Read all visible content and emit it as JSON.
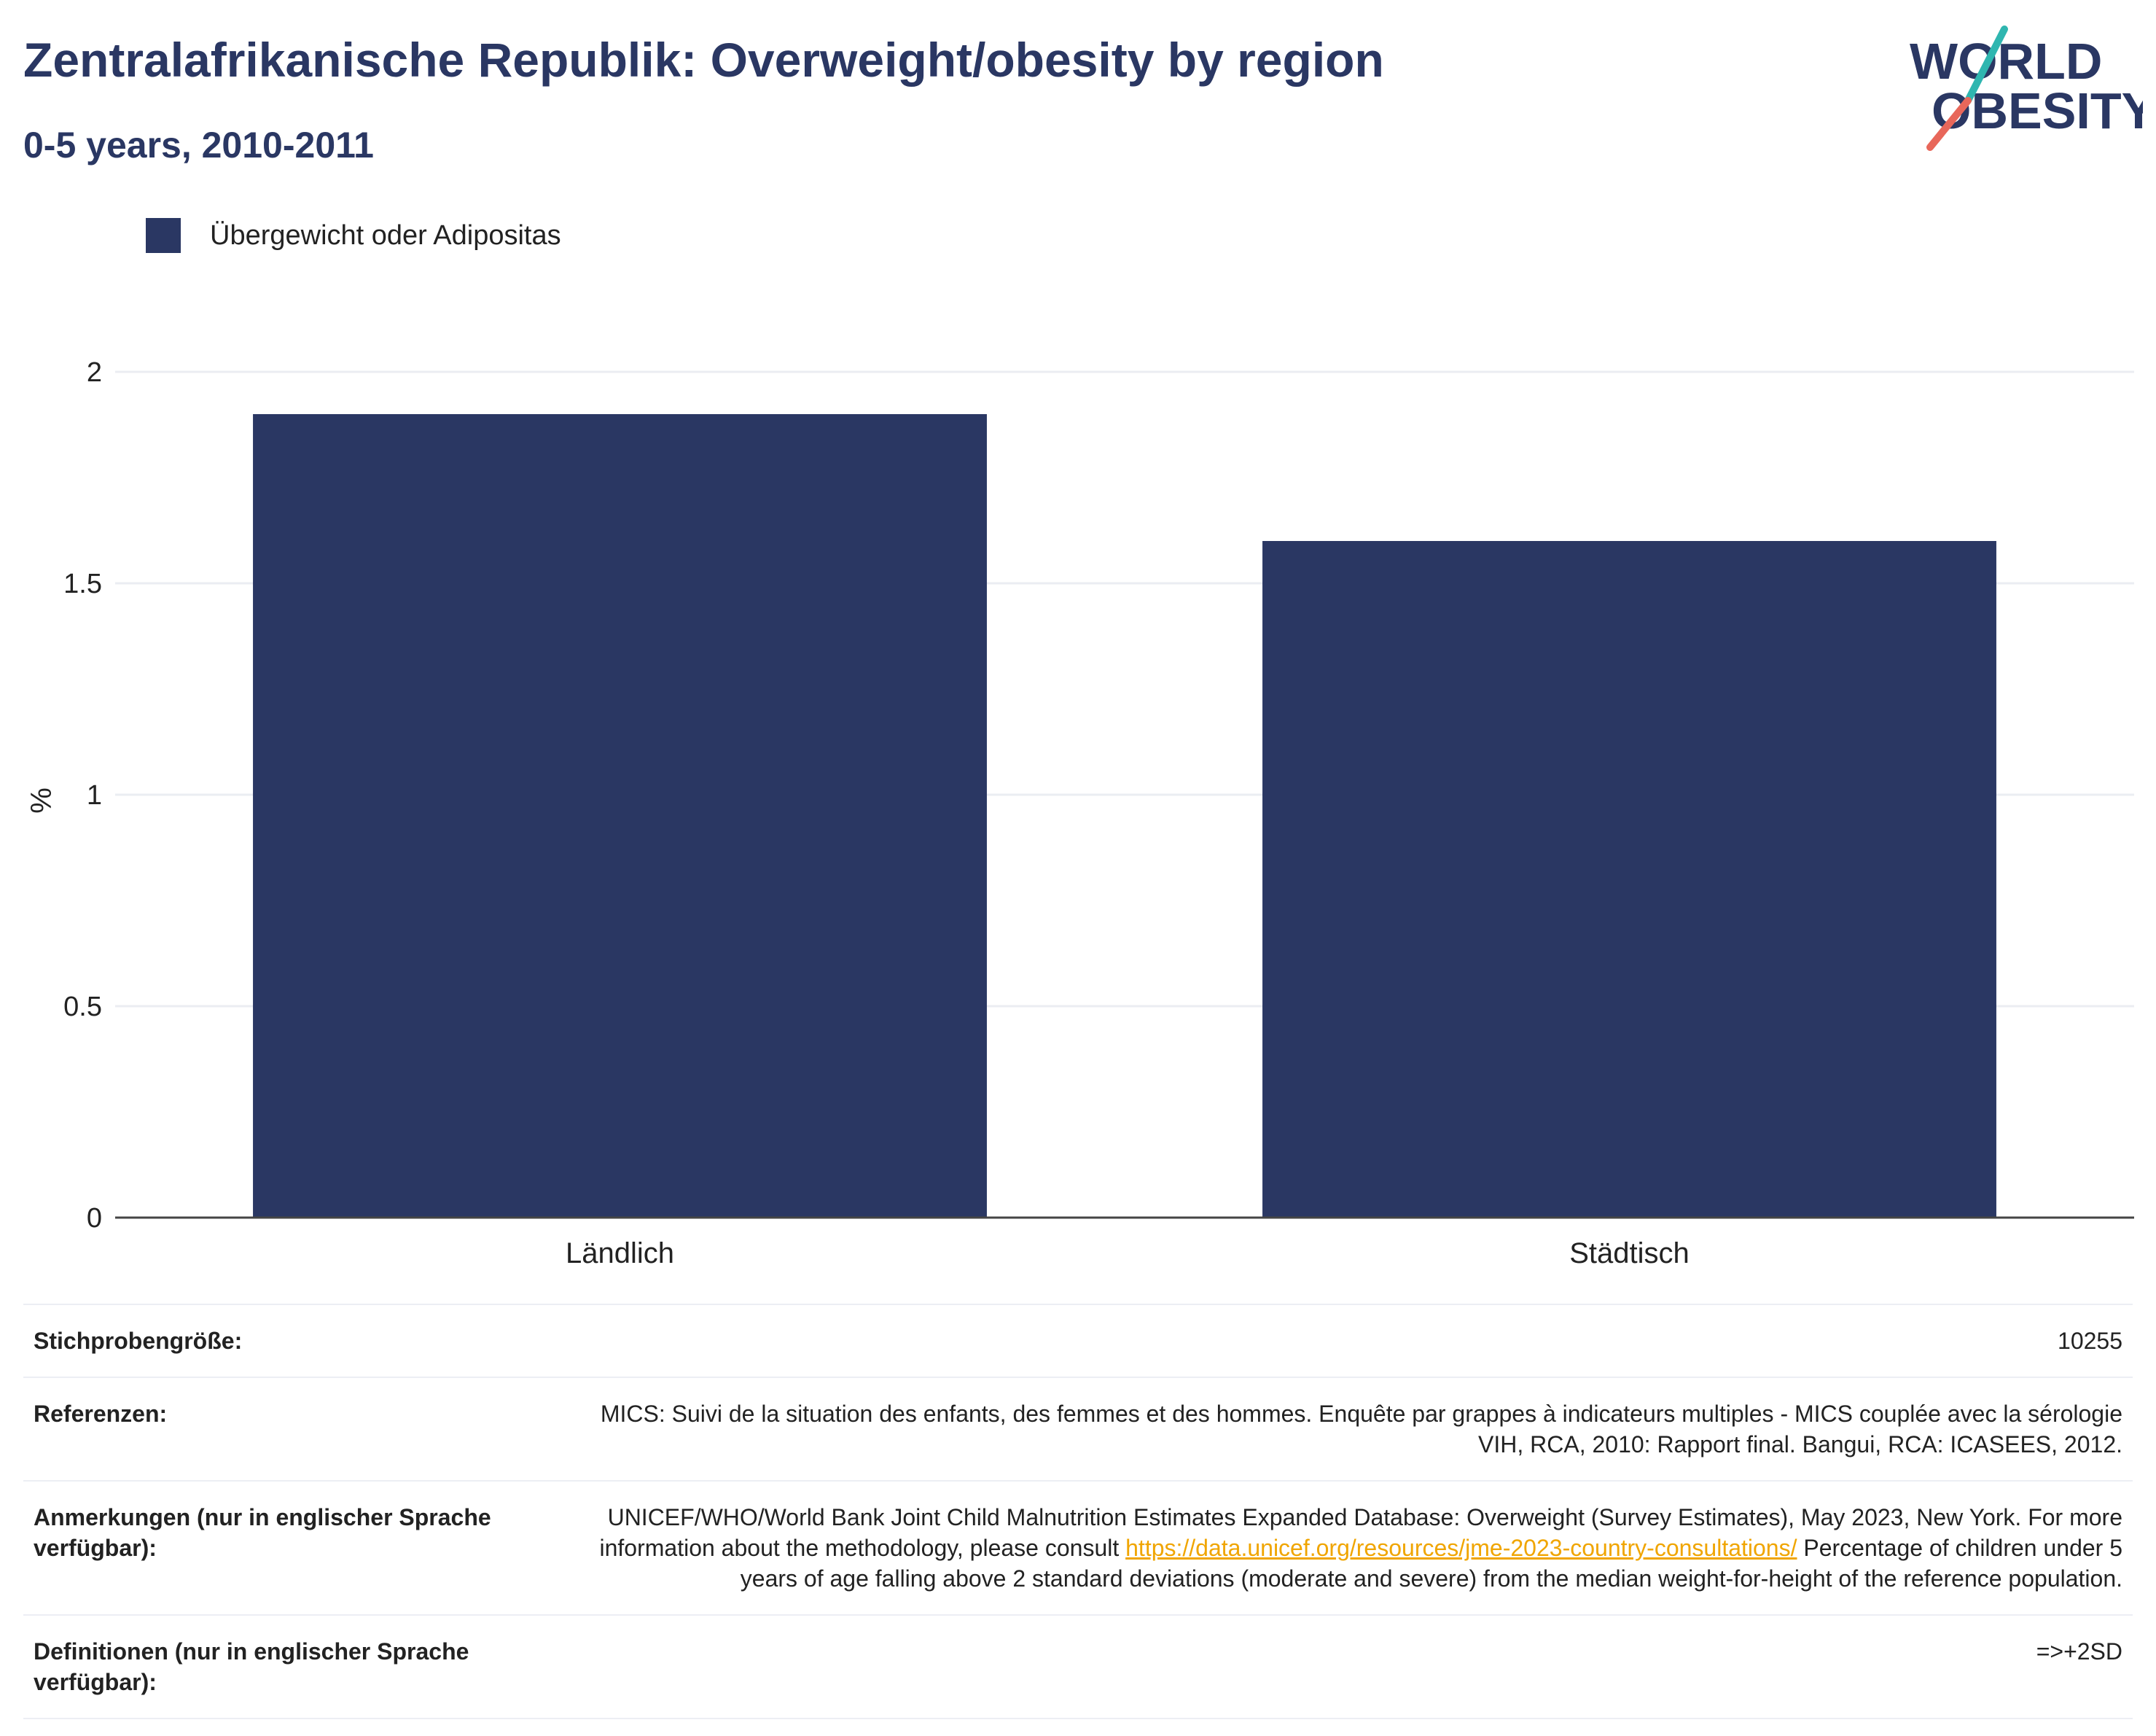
{
  "header": {
    "title": "Zentralafrikanische Republik: Overweight/obesity by region",
    "subtitle": "0-5 years, 2010-2011"
  },
  "logo": {
    "line1": "WORLD",
    "line2": "OBESITY"
  },
  "colors": {
    "bar": "#2a3763",
    "title": "#2a3763",
    "grid": "#ebedf2",
    "axis": "#444444",
    "link": "#f0a500"
  },
  "chart_data": {
    "type": "bar",
    "categories": [
      "Ländlich",
      "Städtisch"
    ],
    "series": [
      {
        "name": "Übergewicht oder Adipositas",
        "values": [
          1.9,
          1.6
        ]
      }
    ],
    "title": "",
    "xlabel": "",
    "ylabel": "%",
    "ylim": [
      0,
      2
    ],
    "yticks": [
      0,
      0.5,
      1,
      1.5,
      2
    ],
    "ytick_labels": [
      "0",
      "0.5",
      "1",
      "1.5",
      "2"
    ],
    "grid": true,
    "legend_position": "top-left"
  },
  "info": {
    "rows": [
      {
        "key": "Stichprobengröße:",
        "value": "10255"
      },
      {
        "key": "Referenzen:",
        "value": "MICS: Suivi de la situation des enfants, des femmes et des hommes. Enquête par grappes à indicateurs multiples - MICS couplée avec la sérologie VIH, RCA, 2010: Rapport final. Bangui, RCA: ICASEES, 2012."
      },
      {
        "key": "Anmerkungen (nur in englischer Sprache verfügbar):",
        "value_before": "UNICEF/WHO/World Bank Joint Child Malnutrition Estimates Expanded Database: Overweight (Survey Estimates), May 2023, New York. For more information about the methodology, please consult ",
        "link": "https://data.unicef.org/resources/jme-2023-country-consultations/",
        "value_after": " Percentage of children under 5 years of age falling above 2 standard deviations (moderate and severe) from the median weight-for-height of the reference population."
      },
      {
        "key": "Definitionen (nur in englischer Sprache verfügbar):",
        "value": "=>+2SD"
      }
    ]
  }
}
